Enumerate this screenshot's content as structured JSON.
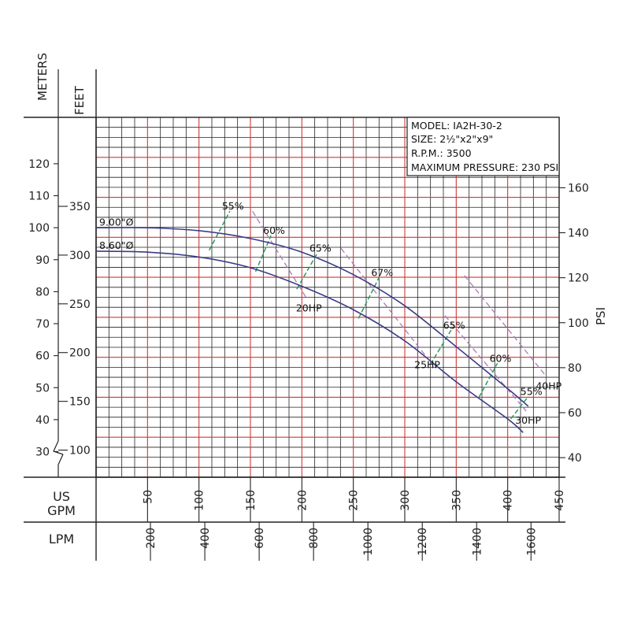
{
  "chart_data": {
    "type": "line",
    "title_block": {
      "model": "MODEL: IA2H-30-2",
      "size": "SIZE: 2½\"x2\"x9\"",
      "rpm": "R.P.M.: 3500",
      "pressure": "MAXIMUM PRESSURE: 230 PSI"
    },
    "axes": {
      "meters": {
        "label": "METERS",
        "ticks": [
          30,
          40,
          50,
          60,
          70,
          80,
          90,
          100,
          110,
          120
        ],
        "range": [
          22,
          134.5
        ]
      },
      "feet": {
        "label": "FEET",
        "ticks": [
          100,
          150,
          200,
          250,
          300,
          350
        ]
      },
      "psi": {
        "label": "PSI",
        "ticks": [
          40,
          60,
          80,
          100,
          120,
          140,
          160
        ]
      },
      "gpm": {
        "label_line1": "US",
        "label_line2": "GPM",
        "ticks": [
          50,
          100,
          150,
          200,
          250,
          300,
          350,
          400,
          450
        ],
        "range": [
          0,
          450
        ]
      },
      "lpm": {
        "label": "LPM",
        "ticks": [
          200,
          400,
          600,
          800,
          1000,
          1200,
          1400,
          1600
        ]
      }
    },
    "series": [
      {
        "name": "9.00\"Ø",
        "x": [
          0,
          50,
          100,
          150,
          200,
          250,
          300,
          350,
          400,
          420
        ],
        "y": [
          328,
          328,
          325,
          317,
          303,
          280,
          248,
          206,
          163,
          145
        ],
        "color": "#3a3d86"
      },
      {
        "name": "8.60\"Ø",
        "x": [
          0,
          50,
          100,
          150,
          200,
          250,
          300,
          350,
          400,
          415
        ],
        "y": [
          304,
          303,
          298,
          287,
          268,
          244,
          212,
          170,
          132,
          118
        ],
        "color": "#3a3d86"
      }
    ],
    "efficiency_curves": [
      {
        "label": "55%",
        "x": [
          110,
          130
        ],
        "y": [
          305,
          345
        ]
      },
      {
        "label": "60%",
        "x": [
          155,
          170
        ],
        "y": [
          283,
          320
        ]
      },
      {
        "label": "65%",
        "x": [
          195,
          215
        ],
        "y": [
          265,
          302
        ]
      },
      {
        "label": "67%",
        "x": [
          255,
          275
        ],
        "y": [
          235,
          277
        ]
      },
      {
        "label": "65%",
        "x": [
          325,
          345
        ],
        "y": [
          188,
          223
        ]
      },
      {
        "label": "60%",
        "x": [
          372,
          390
        ],
        "y": [
          154,
          189
        ]
      },
      {
        "label": "55%",
        "x": [
          403,
          420
        ],
        "y": [
          132,
          155
        ]
      }
    ],
    "horsepower_lines": [
      {
        "label": "20HP",
        "x": [
          152,
          205
        ],
        "y": [
          345,
          255
        ]
      },
      {
        "label": "25HP",
        "x": [
          238,
          320
        ],
        "y": [
          307,
          197
        ]
      },
      {
        "label": "30HP",
        "x": [
          339,
          418
        ],
        "y": [
          238,
          140
        ]
      },
      {
        "label": "40HP",
        "x": [
          358,
          438
        ],
        "y": [
          279,
          175
        ]
      }
    ],
    "grid": true,
    "grid_color_major": "#cc3a3a",
    "grid_color_minor": "#222222",
    "efficiency_color": "#2a9a5a",
    "hp_color": "#b07ab7"
  }
}
